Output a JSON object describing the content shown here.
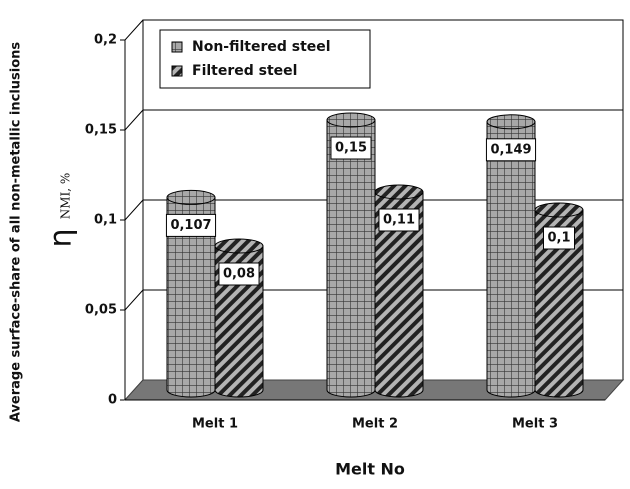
{
  "chart_data": {
    "type": "cylinder-bar",
    "y_label": "Average surface-share of all non-metallic inclusions",
    "y_label_symbol": "η",
    "y_label_unit": "NMI, %",
    "x_label": "Melt No",
    "categories": [
      "Melt 1",
      "Melt 2",
      "Melt 3"
    ],
    "series": [
      {
        "name": "Non-filtered steel",
        "color": "#a8a8a8",
        "pattern": "grid",
        "values": [
          0.107,
          0.15,
          0.149
        ],
        "value_labels": [
          "0,107",
          "0,15",
          "0,149"
        ]
      },
      {
        "name": "Filtered steel",
        "color": "#b4b4b4",
        "pattern": "diagonal",
        "values": [
          0.08,
          0.11,
          0.1
        ],
        "value_labels": [
          "0,08",
          "0,11",
          "0,1"
        ]
      }
    ],
    "ylim": [
      0,
      0.2
    ],
    "yticks": [
      0,
      {
        "value": 0.05,
        "label": "0,05"
      },
      {
        "value": 0.1,
        "label": "0,1"
      },
      {
        "value": 0.15,
        "label": "0,15"
      },
      {
        "value": 0.2,
        "label": "0,2"
      }
    ],
    "grid": true,
    "legend": "upper left"
  }
}
